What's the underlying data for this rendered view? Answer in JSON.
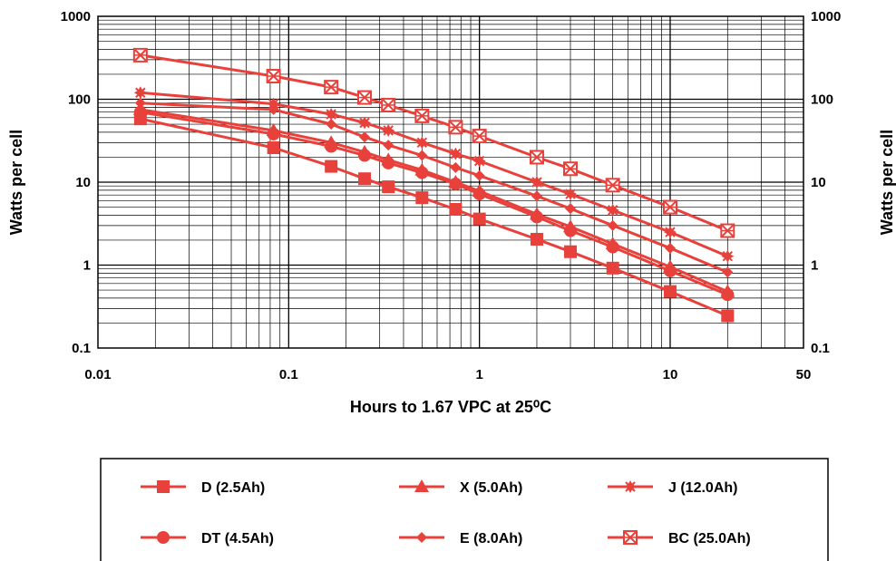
{
  "chart_data": {
    "type": "line",
    "xlabel": "Hours to 1.67 VPC at 25⁰C",
    "ylabel": "Watts per cell",
    "ylabel_right": "Watts per cell",
    "x_scale": "log",
    "y_scale": "log",
    "xlim": [
      0.01,
      50
    ],
    "ylim": [
      0.1,
      1000
    ],
    "x_ticks": [
      {
        "value": 0.01,
        "label": "0.01"
      },
      {
        "value": 0.1,
        "label": "0.1"
      },
      {
        "value": 1,
        "label": "1"
      },
      {
        "value": 10,
        "label": "10"
      },
      {
        "value": 50,
        "label": "50"
      }
    ],
    "y_ticks": [
      {
        "value": 0.1,
        "label": "0.1"
      },
      {
        "value": 1,
        "label": "1"
      },
      {
        "value": 10,
        "label": "10"
      },
      {
        "value": 100,
        "label": "100"
      },
      {
        "value": 1000,
        "label": "1000"
      }
    ],
    "grid": true,
    "legend_position": "bottom",
    "line_color": "#e8403a",
    "series": [
      {
        "name": "D (2.5Ah)",
        "marker": "square",
        "x": [
          0.0167,
          0.0833,
          0.167,
          0.25,
          0.333,
          0.5,
          0.75,
          1,
          2,
          3,
          5,
          10,
          20
        ],
        "y": [
          58,
          26,
          15.5,
          11,
          8.8,
          6.5,
          4.7,
          3.6,
          2.05,
          1.45,
          0.92,
          0.48,
          0.245
        ]
      },
      {
        "name": "DT (4.5Ah)",
        "marker": "circle",
        "x": [
          0.0167,
          0.0833,
          0.167,
          0.25,
          0.333,
          0.5,
          0.75,
          1,
          2,
          3,
          5,
          10,
          20
        ],
        "y": [
          70,
          38,
          27,
          21,
          17,
          13,
          9.5,
          7.2,
          3.8,
          2.6,
          1.65,
          0.85,
          0.44
        ]
      },
      {
        "name": "X (5.0Ah)",
        "marker": "triangle",
        "x": [
          0.0167,
          0.0833,
          0.167,
          0.25,
          0.333,
          0.5,
          0.75,
          1,
          2,
          3,
          5,
          10,
          20
        ],
        "y": [
          75,
          42,
          30,
          23,
          18.5,
          14,
          10,
          7.8,
          4.1,
          2.9,
          1.8,
          0.95,
          0.48
        ]
      },
      {
        "name": "E (8.0Ah)",
        "marker": "diamond",
        "x": [
          0.0167,
          0.0833,
          0.167,
          0.25,
          0.333,
          0.5,
          0.75,
          1,
          2,
          3,
          5,
          10,
          20
        ],
        "y": [
          90,
          75,
          50,
          35,
          28,
          21,
          15,
          12,
          6.8,
          4.8,
          3.0,
          1.6,
          0.82
        ]
      },
      {
        "name": "J (12.0Ah)",
        "marker": "star",
        "x": [
          0.0167,
          0.0833,
          0.167,
          0.25,
          0.333,
          0.5,
          0.75,
          1,
          2,
          3,
          5,
          10,
          20
        ],
        "y": [
          120,
          88,
          66,
          52,
          42,
          30,
          22,
          18,
          10,
          7.2,
          4.6,
          2.5,
          1.28
        ]
      },
      {
        "name": "BC (25.0Ah)",
        "marker": "box-x",
        "x": [
          0.0167,
          0.0833,
          0.167,
          0.25,
          0.333,
          0.5,
          0.75,
          1,
          2,
          3,
          5,
          10,
          20
        ],
        "y": [
          340,
          190,
          140,
          105,
          85,
          63,
          46,
          36,
          20,
          14.5,
          9.2,
          5.0,
          2.6
        ]
      }
    ],
    "legend": [
      {
        "label": "D (2.5Ah)",
        "marker": "square"
      },
      {
        "label": "X (5.0Ah)",
        "marker": "triangle"
      },
      {
        "label": "J (12.0Ah)",
        "marker": "star"
      },
      {
        "label": "DT (4.5Ah)",
        "marker": "circle"
      },
      {
        "label": "E (8.0Ah)",
        "marker": "diamond"
      },
      {
        "label": "BC (25.0Ah)",
        "marker": "box-x"
      }
    ]
  }
}
